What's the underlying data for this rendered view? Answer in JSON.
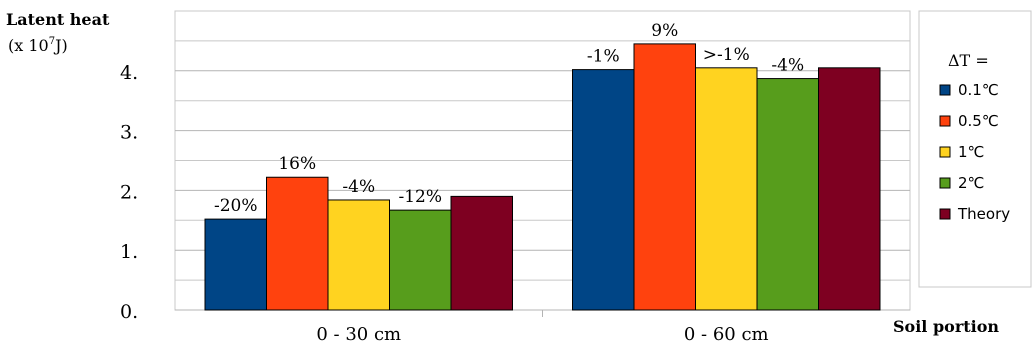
{
  "chart_data": {
    "type": "bar",
    "ylabel": "Latent heat",
    "yunit_prefix": "(x 10",
    "yunit_exp": "7",
    "yunit_suffix": "J)",
    "xlabel": "Soil portion",
    "ylim": [
      0,
      5
    ],
    "yticks": [
      {
        "value": 0,
        "label": "0."
      },
      {
        "value": 1,
        "label": "1."
      },
      {
        "value": 2,
        "label": "2."
      },
      {
        "value": 3,
        "label": "3."
      },
      {
        "value": 4,
        "label": "4."
      }
    ],
    "minor_gridlines": [
      0.5,
      1.5,
      2.5,
      3.5,
      4.5
    ],
    "categories": [
      "0 - 30 cm",
      "0 - 60 cm"
    ],
    "legend_title": "ΔT =",
    "legend_position": "right",
    "series": [
      {
        "name": "0.1℃",
        "color": "#004586",
        "values": [
          1.52,
          4.02
        ],
        "labels": [
          "-20%",
          "-1%"
        ]
      },
      {
        "name": "0.5℃",
        "color": "#ff420e",
        "values": [
          2.22,
          4.45
        ],
        "labels": [
          "16%",
          "9%"
        ]
      },
      {
        "name": "1℃",
        "color": "#ffd320",
        "values": [
          1.84,
          4.05
        ],
        "labels": [
          "-4%",
          ">-1%"
        ]
      },
      {
        "name": "2℃",
        "color": "#579d1c",
        "values": [
          1.67,
          3.87
        ],
        "labels": [
          "-12%",
          "-4%"
        ]
      },
      {
        "name": "Theory",
        "color": "#7e0021",
        "values": [
          1.9,
          4.05
        ],
        "labels": [
          "",
          ""
        ]
      }
    ]
  }
}
